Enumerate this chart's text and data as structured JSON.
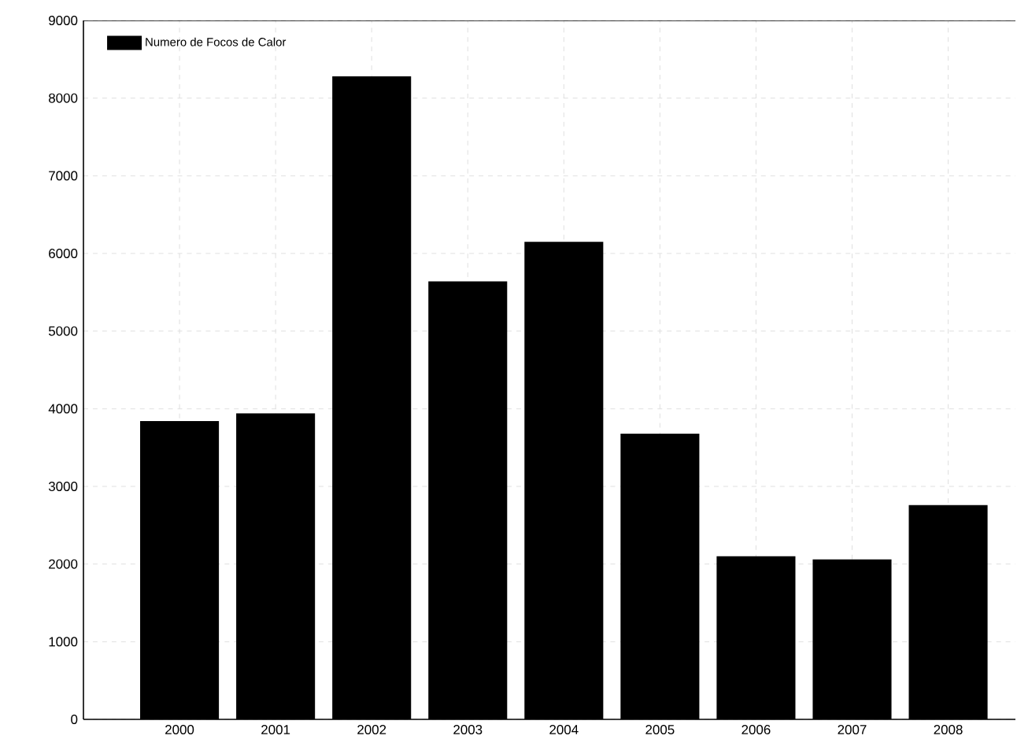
{
  "chart_data": {
    "type": "bar",
    "categories": [
      "2000",
      "2001",
      "2002",
      "2003",
      "2004",
      "2005",
      "2006",
      "2007",
      "2008"
    ],
    "series": [
      {
        "name": "Numero de Focos de Calor",
        "color": "#000000",
        "values": [
          3840,
          3940,
          8280,
          5640,
          6150,
          3680,
          2100,
          2060,
          2760
        ]
      }
    ],
    "ylim": [
      0,
      9000
    ],
    "yticks": [
      0,
      1000,
      2000,
      3000,
      4000,
      5000,
      6000,
      7000,
      8000,
      9000
    ],
    "grid": true,
    "legend": "top left"
  }
}
